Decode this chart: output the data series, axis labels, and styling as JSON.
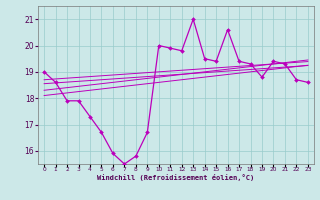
{
  "x": [
    0,
    1,
    2,
    3,
    4,
    5,
    6,
    7,
    8,
    9,
    10,
    11,
    12,
    13,
    14,
    15,
    16,
    17,
    18,
    19,
    20,
    21,
    22,
    23
  ],
  "main_line": [
    19.0,
    18.6,
    17.9,
    17.9,
    17.3,
    16.7,
    15.9,
    15.5,
    15.8,
    16.7,
    20.0,
    19.9,
    19.8,
    21.0,
    19.5,
    19.4,
    20.6,
    19.4,
    19.3,
    18.8,
    19.4,
    19.3,
    18.7,
    18.6
  ],
  "trend1": [
    18.55,
    18.58,
    18.61,
    18.64,
    18.67,
    18.7,
    18.73,
    18.76,
    18.79,
    18.82,
    18.85,
    18.88,
    18.91,
    18.94,
    18.97,
    19.0,
    19.03,
    19.06,
    19.09,
    19.12,
    19.15,
    19.18,
    19.21,
    19.24
  ],
  "trend2": [
    18.3,
    18.35,
    18.4,
    18.45,
    18.5,
    18.55,
    18.6,
    18.65,
    18.7,
    18.75,
    18.8,
    18.85,
    18.9,
    18.95,
    19.0,
    19.05,
    19.1,
    19.15,
    19.2,
    19.25,
    19.3,
    19.35,
    19.4,
    19.45
  ],
  "trend3": [
    18.7,
    18.73,
    18.76,
    18.79,
    18.82,
    18.85,
    18.88,
    18.91,
    18.94,
    18.97,
    19.0,
    19.03,
    19.06,
    19.09,
    19.12,
    19.15,
    19.18,
    19.21,
    19.24,
    19.27,
    19.3,
    19.33,
    19.36,
    19.39
  ],
  "trend4": [
    18.1,
    18.15,
    18.2,
    18.25,
    18.3,
    18.35,
    18.4,
    18.45,
    18.5,
    18.55,
    18.6,
    18.65,
    18.7,
    18.75,
    18.8,
    18.85,
    18.9,
    18.95,
    19.0,
    19.05,
    19.1,
    19.15,
    19.2,
    19.25
  ],
  "line_color": "#bb00bb",
  "bg_color": "#cce8e8",
  "grid_color": "#99cccc",
  "xlabel": "Windchill (Refroidissement éolien,°C)",
  "ylim": [
    15.5,
    21.5
  ],
  "xlim": [
    -0.5,
    23.5
  ],
  "yticks": [
    16,
    17,
    18,
    19,
    20,
    21
  ]
}
